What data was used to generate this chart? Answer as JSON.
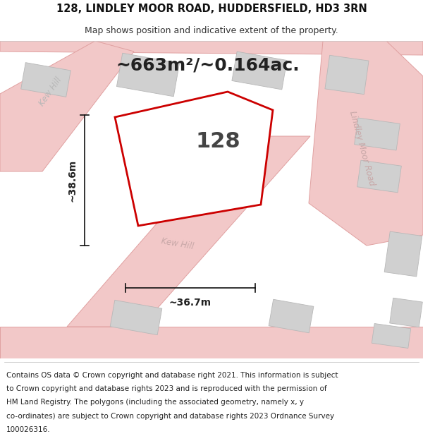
{
  "title_line1": "128, LINDLEY MOOR ROAD, HUDDERSFIELD, HD3 3RN",
  "title_line2": "Map shows position and indicative extent of the property.",
  "area_text": "~663m²/~0.164ac.",
  "label_128": "128",
  "label_width": "~36.7m",
  "label_height": "~38.6m",
  "road_label_kew_hill_upper": "Kew Hill",
  "road_label_kew_hill_lower": "Kew Hill",
  "road_label_lindley": "Lindley Moor Road",
  "footer_lines": [
    "Contains OS data © Crown copyright and database right 2021. This information is subject",
    "to Crown copyright and database rights 2023 and is reproduced with the permission of",
    "HM Land Registry. The polygons (including the associated geometry, namely x, y",
    "co-ordinates) are subject to Crown copyright and database rights 2023 Ordnance Survey",
    "100026316."
  ],
  "road_color": "#f2c8c8",
  "road_edge_color": "#e0a0a0",
  "building_color": "#d0d0d0",
  "building_edge_color": "#b8b8b8",
  "plot_edge_color": "#cc0000",
  "plot_fill_color": "#ffffff",
  "dim_color": "#111111",
  "bg_color": "#ffffff",
  "title_fontsize": 10.5,
  "subtitle_fontsize": 9.0,
  "area_fontsize": 18,
  "label_fontsize": 22,
  "road_label_fontsize": 8.5,
  "footer_fontsize": 7.5
}
